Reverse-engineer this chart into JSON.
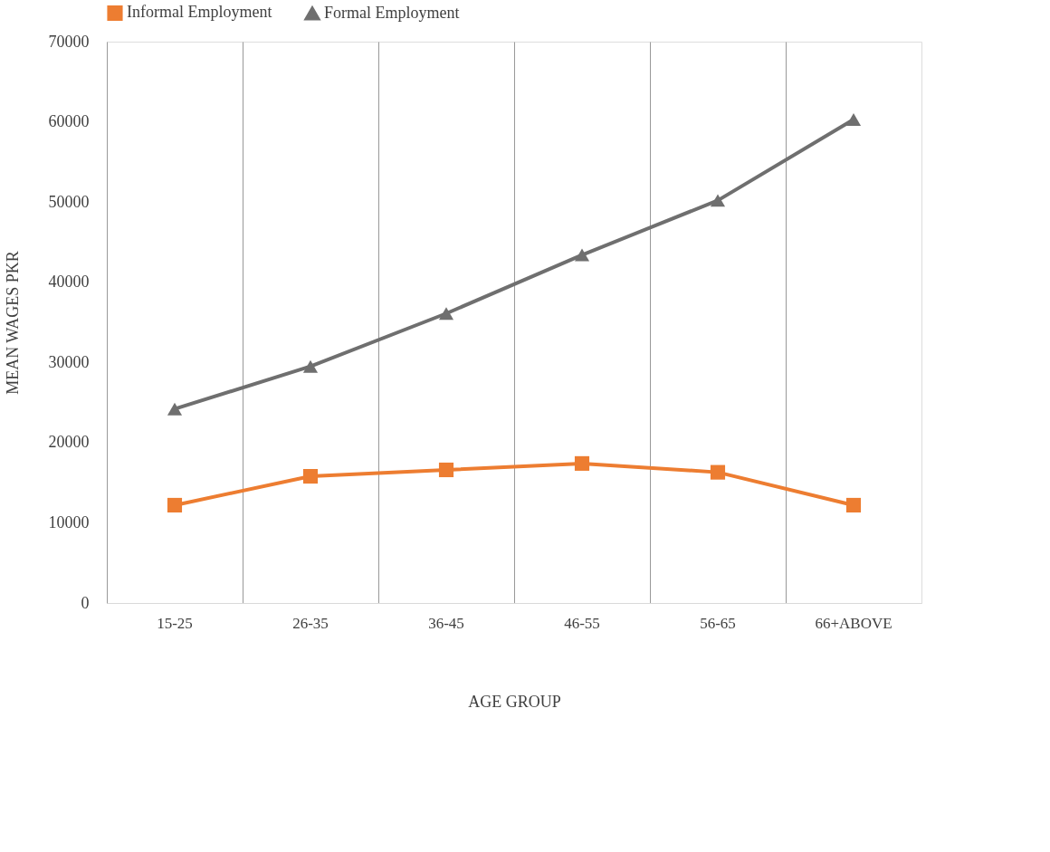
{
  "chart_data": {
    "type": "line",
    "xlabel": "AGE GROUP",
    "ylabel": "MEAN WAGES PKR",
    "categories": [
      "15-25",
      "26-35",
      "36-45",
      "46-55",
      "56-65",
      "66+ABOVE"
    ],
    "series": [
      {
        "name": "Informal Employment",
        "color": "#ed7d31",
        "marker": "square",
        "values": [
          12200,
          15800,
          16600,
          17400,
          16300,
          12200
        ]
      },
      {
        "name": "Formal Employment",
        "color": "#6f6f6f",
        "marker": "triangle",
        "values": [
          24200,
          29500,
          36100,
          43400,
          50200,
          60300
        ]
      }
    ],
    "ylim": [
      0,
      70000
    ],
    "yticks": [
      0,
      10000,
      20000,
      30000,
      40000,
      50000,
      60000,
      70000
    ],
    "grid": "x",
    "legend": "top",
    "line_style": "solid"
  }
}
